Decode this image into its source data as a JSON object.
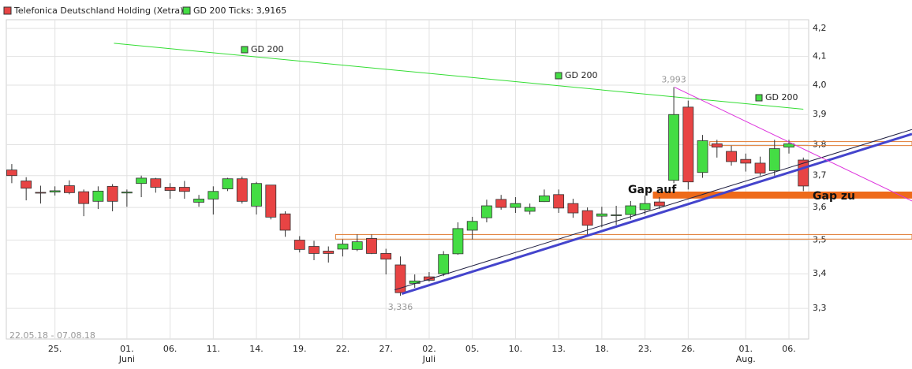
{
  "chart_data": {
    "type": "candlestick",
    "date_range": "22.05.18 - 07.08.18",
    "log_scale": true,
    "grid": true,
    "categories": [
      null,
      null,
      null,
      "25.",
      null,
      null,
      null,
      null,
      "01.",
      null,
      null,
      "06.",
      null,
      null,
      "11.",
      null,
      null,
      "14.",
      null,
      null,
      "19.",
      null,
      null,
      "22.",
      null,
      null,
      "27.",
      null,
      null,
      "02.",
      null,
      null,
      "05.",
      null,
      null,
      "10.",
      null,
      null,
      "13.",
      null,
      null,
      "18.",
      null,
      null,
      "23.",
      null,
      null,
      "26.",
      null,
      null,
      null,
      "01.",
      null,
      null,
      "06.",
      null
    ],
    "x_groups": [
      {
        "label": "Juni",
        "index": 8
      },
      {
        "label": "Juli",
        "index": 29
      },
      {
        "label": "Aug.",
        "index": 51
      }
    ],
    "xlim": [
      -0.38,
      55.37
    ],
    "ylim": [
      3.214,
      4.232
    ],
    "yticks": [
      {
        "value": 3.3,
        "label": "3,3"
      },
      {
        "value": 3.4,
        "label": "3,4"
      },
      {
        "value": 3.5,
        "label": "3,5"
      },
      {
        "value": 3.6,
        "label": "3,6"
      },
      {
        "value": 3.7,
        "label": "3,7"
      },
      {
        "value": 3.8,
        "label": "3,8"
      },
      {
        "value": 3.9,
        "label": "3,9"
      },
      {
        "value": 4.0,
        "label": "4,0"
      },
      {
        "value": 4.1,
        "label": "4,1"
      },
      {
        "value": 4.2,
        "label": "4,2"
      }
    ],
    "series": [
      {
        "name": "Telefonica Deutschland Holding (Xetra)",
        "color": "#e84444",
        "up_color": "#44dd44",
        "open": [
          3.718,
          3.683,
          3.647,
          3.648,
          3.668,
          3.649,
          3.619,
          3.666,
          3.645,
          3.675,
          3.69,
          3.663,
          3.663,
          3.616,
          3.626,
          3.658,
          3.69,
          3.604,
          3.67,
          3.58,
          3.5,
          3.481,
          3.467,
          3.473,
          3.472,
          3.505,
          3.46,
          3.426,
          3.372,
          3.391,
          3.4,
          3.459,
          3.53,
          3.568,
          3.625,
          3.6,
          3.588,
          3.618,
          3.64,
          3.612,
          3.59,
          3.573,
          3.575,
          3.578,
          3.593,
          3.617,
          3.685,
          3.925,
          3.71,
          3.803,
          3.778,
          3.752,
          3.74,
          3.716,
          3.792,
          3.75
        ],
        "high": [
          3.737,
          3.695,
          3.668,
          3.666,
          3.685,
          3.656,
          3.666,
          3.673,
          3.656,
          3.7,
          3.693,
          3.676,
          3.683,
          3.639,
          3.666,
          3.693,
          3.697,
          3.68,
          3.668,
          3.588,
          3.512,
          3.498,
          3.481,
          3.502,
          3.517,
          3.517,
          3.474,
          3.451,
          3.398,
          3.405,
          3.467,
          3.554,
          3.571,
          3.624,
          3.639,
          3.632,
          3.612,
          3.656,
          3.656,
          3.627,
          3.6,
          3.602,
          3.605,
          3.62,
          3.637,
          3.632,
          3.993,
          3.947,
          3.832,
          3.816,
          3.797,
          3.771,
          3.761,
          3.816,
          3.816,
          3.758
        ],
        "low": [
          3.676,
          3.622,
          3.612,
          3.637,
          3.641,
          3.573,
          3.595,
          3.588,
          3.602,
          3.632,
          3.646,
          3.627,
          3.627,
          3.602,
          3.578,
          3.651,
          3.612,
          3.578,
          3.563,
          3.51,
          3.463,
          3.44,
          3.433,
          3.451,
          3.467,
          3.458,
          3.398,
          3.336,
          3.359,
          3.377,
          3.393,
          3.456,
          3.502,
          3.554,
          3.593,
          3.583,
          3.578,
          3.617,
          3.583,
          3.568,
          3.51,
          3.539,
          3.546,
          3.563,
          3.578,
          3.595,
          3.676,
          3.656,
          3.693,
          3.758,
          3.732,
          3.713,
          3.7,
          3.7,
          3.771,
          3.651
        ],
        "close": [
          3.7,
          3.66,
          3.645,
          3.652,
          3.646,
          3.612,
          3.651,
          3.619,
          3.648,
          3.692,
          3.663,
          3.653,
          3.65,
          3.626,
          3.65,
          3.69,
          3.619,
          3.675,
          3.57,
          3.53,
          3.472,
          3.46,
          3.46,
          3.488,
          3.495,
          3.46,
          3.443,
          3.345,
          3.379,
          3.381,
          3.457,
          3.535,
          3.557,
          3.605,
          3.6,
          3.612,
          3.6,
          3.636,
          3.598,
          3.583,
          3.545,
          3.58,
          3.577,
          3.605,
          3.612,
          3.605,
          3.9,
          3.68,
          3.813,
          3.792,
          3.745,
          3.74,
          3.708,
          3.787,
          3.803,
          3.667
        ]
      },
      {
        "name": "GD 200 Ticks: 3,9165",
        "color": "#33dd33",
        "x": [
          7.1,
          55
        ],
        "values": [
          4.147,
          3.918
        ]
      }
    ],
    "extremes": [
      {
        "index": 46,
        "value": 3.993,
        "label": "3,993"
      },
      {
        "index": 27,
        "value": 3.336,
        "label": "3,336"
      }
    ],
    "trend_lines": [
      {
        "color": "#4444cc",
        "x": [
          27.1,
          62.55
        ],
        "values": [
          3.342,
          3.835
        ]
      },
      {
        "color": "#222244",
        "x": [
          26.6,
          62.55
        ],
        "values": [
          3.353,
          3.85
        ]
      },
      {
        "color": "#dd33dd",
        "x": [
          46.05,
          62.55
        ],
        "values": [
          3.993,
          3.62
        ]
      }
    ],
    "bands": [
      {
        "color": "#e07a30",
        "x": [
          48.5,
          62.55
        ],
        "values": [
          3.81,
          3.797
        ]
      },
      {
        "color": "#e07a30",
        "x": [
          22.5,
          62.55
        ],
        "values": [
          3.517,
          3.503
        ]
      },
      {
        "color": "#ee6a1a",
        "x": [
          44.6,
          62.55
        ],
        "values": [
          3.647,
          3.63
        ]
      }
    ],
    "annotations": [
      "GD 200",
      "GD 200",
      "GD 200",
      "Gap auf",
      "Gap zu"
    ]
  }
}
